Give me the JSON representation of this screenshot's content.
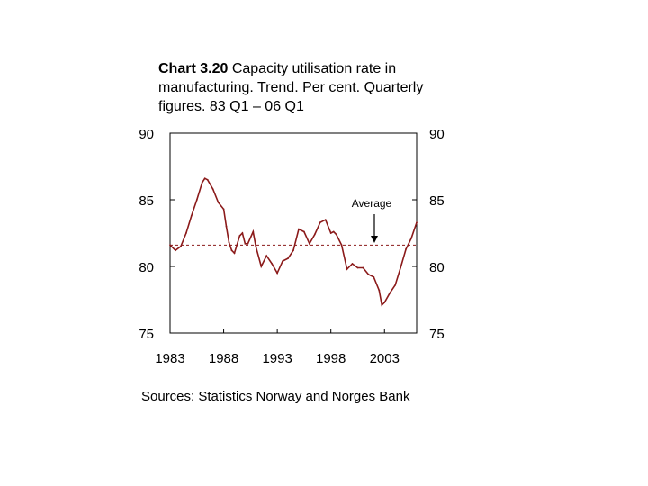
{
  "title": {
    "bold": "Chart 3.20",
    "rest": " Capacity utilisation rate in manufacturing. Trend. Per cent. Quarterly figures. 83 Q1 – 06 Q1"
  },
  "source": "Sources: Statistics Norway and Norges Bank",
  "chart_data": {
    "type": "line",
    "title": "Capacity utilisation rate in manufacturing. Trend. Per cent. Quarterly figures. 83 Q1 – 06 Q1",
    "xlabel": "",
    "ylabel": "",
    "xlim": [
      1983,
      2006
    ],
    "ylim": [
      75,
      90
    ],
    "x_ticks": [
      1983,
      1988,
      1993,
      1998,
      2003
    ],
    "x_tick_labels": [
      "1983",
      "1988",
      "1993",
      "1998",
      "2003"
    ],
    "y_ticks": [
      75,
      80,
      85,
      90
    ],
    "y_tick_labels": [
      "75",
      "80",
      "85",
      "90"
    ],
    "grid": false,
    "line_color": "#8b1a1a",
    "average_color": "#8b1a1a",
    "average": 81.6,
    "annotation": "Average",
    "series": [
      {
        "name": "Capacity utilisation rate",
        "x": [
          1983.0,
          1983.5,
          1984.0,
          1984.5,
          1985.0,
          1985.5,
          1986.0,
          1986.25,
          1986.5,
          1987.0,
          1987.5,
          1988.0,
          1988.25,
          1988.5,
          1988.75,
          1989.0,
          1989.5,
          1989.75,
          1990.0,
          1990.25,
          1990.75,
          1991.0,
          1991.5,
          1992.0,
          1992.5,
          1993.0,
          1993.5,
          1994.0,
          1994.5,
          1995.0,
          1995.5,
          1996.0,
          1996.5,
          1997.0,
          1997.5,
          1998.0,
          1998.25,
          1998.5,
          1999.0,
          1999.5,
          2000.0,
          2000.5,
          2001.0,
          2001.5,
          2002.0,
          2002.5,
          2002.75,
          2003.0,
          2003.5,
          2004.0,
          2004.5,
          2005.0,
          2005.5,
          2006.0
        ],
        "y": [
          81.6,
          81.2,
          81.5,
          82.5,
          83.8,
          85.0,
          86.3,
          86.6,
          86.5,
          85.8,
          84.8,
          84.3,
          83.0,
          81.8,
          81.2,
          81.0,
          82.3,
          82.5,
          81.7,
          81.7,
          82.6,
          81.5,
          80.0,
          80.8,
          80.2,
          79.5,
          80.4,
          80.6,
          81.2,
          82.8,
          82.6,
          81.7,
          82.4,
          83.3,
          83.5,
          82.5,
          82.6,
          82.4,
          81.6,
          79.8,
          80.2,
          79.9,
          79.9,
          79.4,
          79.2,
          78.2,
          77.1,
          77.3,
          78.0,
          78.6,
          79.9,
          81.3,
          82.1,
          83.3
        ]
      }
    ]
  }
}
